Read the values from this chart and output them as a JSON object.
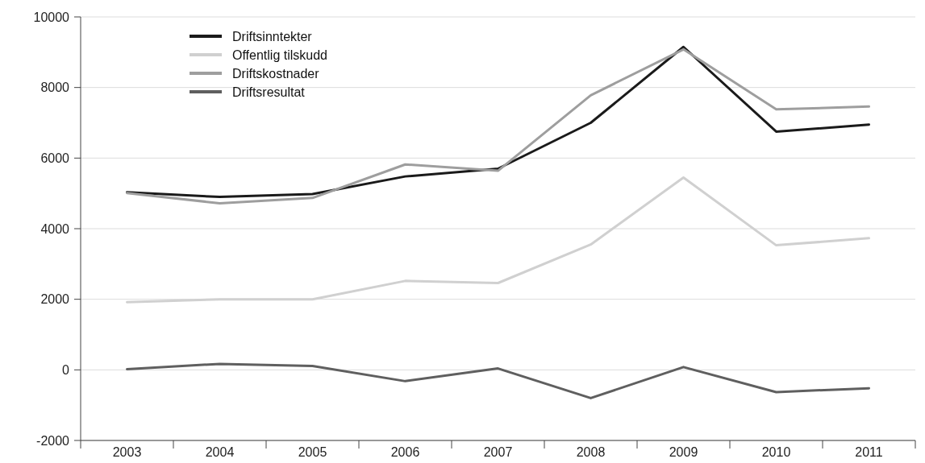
{
  "chart_data": {
    "type": "line",
    "categories": [
      "2003",
      "2004",
      "2005",
      "2006",
      "2007",
      "2008",
      "2009",
      "2010",
      "2011"
    ],
    "series": [
      {
        "name": "Driftsinntekter",
        "color": "#1a1a1a",
        "values": [
          5030,
          4900,
          4980,
          5480,
          5700,
          7000,
          9150,
          6750,
          6950
        ]
      },
      {
        "name": "Offentlig tilskudd",
        "color": "#d0d0d0",
        "values": [
          1920,
          2000,
          2000,
          2520,
          2460,
          3550,
          5450,
          3530,
          3730
        ]
      },
      {
        "name": "Driftskostnader",
        "color": "#9e9e9e",
        "values": [
          5010,
          4720,
          4870,
          5820,
          5640,
          7780,
          9080,
          7380,
          7460
        ]
      },
      {
        "name": "Driftsresultat",
        "color": "#5f5f5f",
        "values": [
          20,
          170,
          110,
          -320,
          40,
          -800,
          80,
          -630,
          -520
        ]
      }
    ],
    "ylim": [
      -2000,
      10000
    ],
    "yticks": [
      -2000,
      0,
      2000,
      4000,
      6000,
      8000,
      10000
    ],
    "grid": "y",
    "legend": "top left",
    "line_style": "solid",
    "marker": "none"
  }
}
